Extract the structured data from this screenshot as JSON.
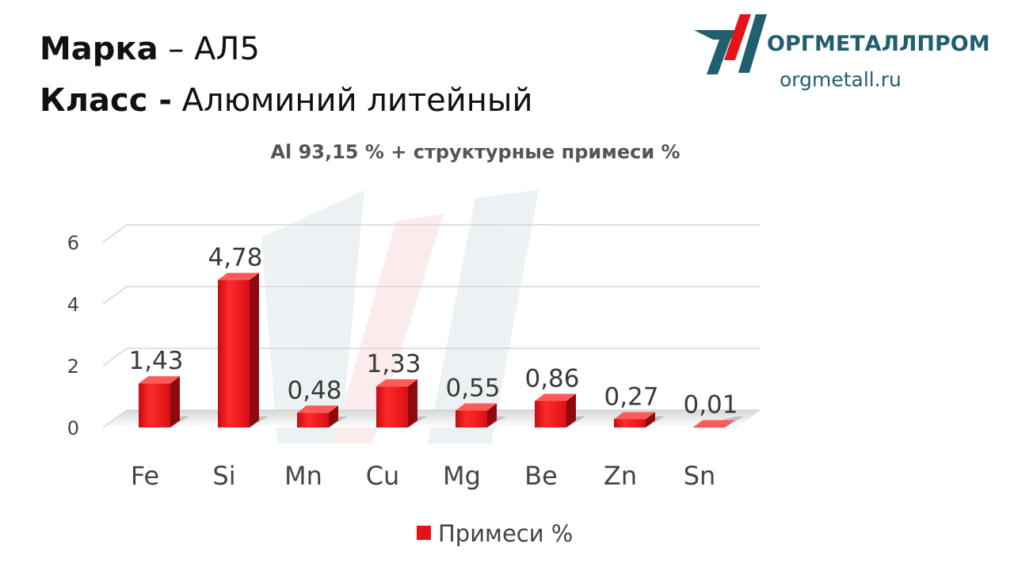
{
  "header": {
    "line1_bold": "Марка",
    "line1_rest": " – АЛ5",
    "line2_bold": "Класс -",
    "line2_rest": " Алюминий литейный"
  },
  "logo": {
    "name": "ОРГМЕТАЛЛПРОМ",
    "url": "orgmetall.ru",
    "colors": {
      "teal": "#1f5f6e",
      "red": "#e5141b"
    }
  },
  "chart_data": {
    "type": "bar",
    "title": "Al 93,15 % + структурные примеси %",
    "categories": [
      "Fe",
      "Si",
      "Mn",
      "Cu",
      "Mg",
      "Be",
      "Zn",
      "Sn"
    ],
    "series": [
      {
        "name": "Примеси %",
        "values": [
          1.43,
          4.78,
          0.48,
          1.33,
          0.55,
          0.86,
          0.27,
          0.01
        ]
      }
    ],
    "data_labels": [
      "1,43",
      "4,78",
      "0,48",
      "1,33",
      "0,55",
      "0,86",
      "0,27",
      "0,01"
    ],
    "ylim": [
      0,
      6
    ],
    "yticks": [
      0,
      2,
      4,
      6
    ],
    "grid": true,
    "legend_position": "bottom",
    "bar_color": "#e5141b",
    "style": "3d"
  }
}
